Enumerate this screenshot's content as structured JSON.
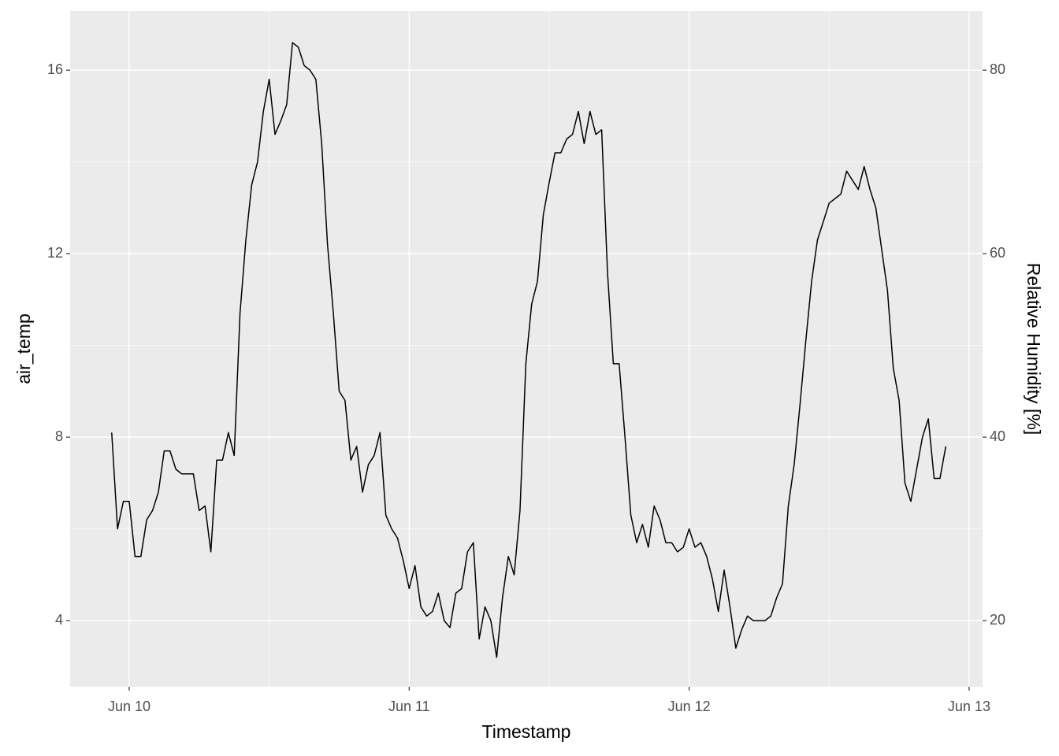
{
  "chart_data": {
    "type": "line",
    "x_label": "Timestamp",
    "y_label": "air_temp",
    "y2_label": "Relative Humidity [%]",
    "x": [
      9.9375,
      9.9583,
      9.9792,
      10,
      10.0208,
      10.0417,
      10.0625,
      10.0833,
      10.1042,
      10.125,
      10.1458,
      10.1667,
      10.1875,
      10.2083,
      10.2292,
      10.25,
      10.2708,
      10.2917,
      10.3125,
      10.3333,
      10.3542,
      10.375,
      10.3958,
      10.4167,
      10.4375,
      10.4583,
      10.4792,
      10.5,
      10.5208,
      10.5417,
      10.5625,
      10.5833,
      10.6042,
      10.625,
      10.6458,
      10.6667,
      10.6875,
      10.7083,
      10.7292,
      10.75,
      10.7708,
      10.7917,
      10.8125,
      10.8333,
      10.8542,
      10.875,
      10.8958,
      10.9167,
      10.9375,
      10.9583,
      10.9792,
      11,
      11.0208,
      11.0417,
      11.0625,
      11.0833,
      11.1042,
      11.125,
      11.1458,
      11.1667,
      11.1875,
      11.2083,
      11.2292,
      11.25,
      11.2708,
      11.2917,
      11.3125,
      11.3333,
      11.3542,
      11.375,
      11.3958,
      11.4167,
      11.4375,
      11.4583,
      11.4792,
      11.5,
      11.5208,
      11.5417,
      11.5625,
      11.5833,
      11.6042,
      11.625,
      11.6458,
      11.6667,
      11.6875,
      11.7083,
      11.7292,
      11.75,
      11.7708,
      11.7917,
      11.8125,
      11.8333,
      11.8542,
      11.875,
      11.8958,
      11.9167,
      11.9375,
      11.9583,
      11.9792,
      12,
      12.0208,
      12.0417,
      12.0625,
      12.0833,
      12.1042,
      12.125,
      12.1458,
      12.1667,
      12.1875,
      12.2083,
      12.2292,
      12.25,
      12.2708,
      12.2917,
      12.3125,
      12.3333,
      12.3542,
      12.375,
      12.3958,
      12.4167,
      12.4375,
      12.4583,
      12.4792,
      12.5,
      12.5208,
      12.5417,
      12.5625,
      12.5833,
      12.6042,
      12.625,
      12.6458,
      12.6667,
      12.6875,
      12.7083,
      12.7292,
      12.75,
      12.7708,
      12.7917,
      12.8125,
      12.8333,
      12.8542,
      12.875,
      12.8958,
      12.9167
    ],
    "values": [
      8.1,
      6.0,
      6.6,
      6.6,
      5.4,
      5.4,
      6.2,
      6.4,
      6.8,
      7.7,
      7.7,
      7.3,
      7.2,
      7.2,
      7.2,
      6.4,
      6.5,
      5.5,
      7.5,
      7.5,
      8.1,
      7.6,
      10.7,
      12.3,
      13.5,
      14.0,
      15.1,
      15.8,
      14.6,
      14.9,
      15.25,
      16.6,
      16.5,
      16.1,
      16.0,
      15.8,
      14.4,
      12.2,
      10.7,
      9.0,
      8.8,
      7.5,
      7.8,
      6.8,
      7.4,
      7.6,
      8.1,
      6.3,
      6.0,
      5.8,
      5.3,
      4.7,
      5.2,
      4.3,
      4.1,
      4.2,
      4.6,
      4.0,
      3.85,
      4.6,
      4.7,
      5.5,
      5.7,
      3.6,
      4.3,
      4.0,
      3.2,
      4.5,
      5.4,
      5.0,
      6.4,
      9.6,
      10.9,
      11.4,
      12.85,
      13.55,
      14.2,
      14.2,
      14.5,
      14.6,
      15.1,
      14.4,
      15.1,
      14.6,
      14.7,
      11.6,
      9.6,
      9.6,
      8.0,
      6.3,
      5.7,
      6.1,
      5.6,
      6.5,
      6.2,
      5.7,
      5.7,
      5.5,
      5.6,
      6.0,
      5.6,
      5.7,
      5.4,
      4.9,
      4.2,
      5.1,
      4.3,
      3.4,
      3.8,
      4.1,
      4.0,
      4.0,
      4.0,
      4.1,
      4.5,
      4.8,
      6.5,
      7.4,
      8.7,
      10.1,
      11.4,
      12.3,
      12.7,
      13.1,
      13.2,
      13.3,
      13.8,
      13.6,
      13.4,
      13.9,
      13.4,
      13.0,
      12.1,
      11.2,
      9.5,
      8.8,
      7.0,
      6.6,
      7.3,
      8.0,
      8.4,
      7.1,
      7.1,
      7.8
    ],
    "color": "#000000",
    "xlim": [
      9.789,
      13.048
    ],
    "xticks": [
      {
        "value": 10,
        "label": "Jun 10"
      },
      {
        "value": 11,
        "label": "Jun 11"
      },
      {
        "value": 12,
        "label": "Jun 12"
      },
      {
        "value": 13,
        "label": "Jun 13"
      }
    ],
    "xminor": [
      10.5,
      11.5,
      12.5
    ],
    "ylim": [
      2.56,
      17.29
    ],
    "yticks": [
      4,
      8,
      12,
      16
    ],
    "yminor": [
      6,
      10,
      14
    ],
    "y2lim": [
      12.8,
      86.45
    ],
    "y2ticks": [
      20,
      40,
      60,
      80
    ],
    "grid": true
  }
}
